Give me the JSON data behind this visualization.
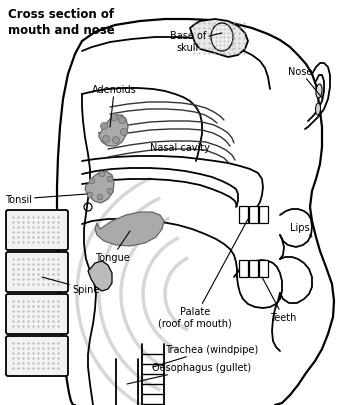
{
  "title": "Cross section of\nmouth and nose",
  "background_color": "#ffffff",
  "line_color": "#000000",
  "gray_fill": "#999999",
  "light_gray": "#cccccc",
  "stipple_color": "#bbbbbb",
  "watermark_gray": "#d0d0d0",
  "labels": {
    "adenoids": "Adenoids",
    "base_of_skull": "Base of\nskull",
    "nose": "Nose",
    "nasal_cavity": "Nasal cavity",
    "tonsil": "Tonsil",
    "tongue": "Tongue",
    "lips": "Lips",
    "spine": "Spine",
    "palate": "Palate\n(roof of mouth)",
    "teeth": "Teeth",
    "trachea": "Trachea (windpipe)",
    "oesophagus": "Oesophagus (gullet)"
  },
  "figsize": [
    3.37,
    4.06
  ],
  "dpi": 100
}
